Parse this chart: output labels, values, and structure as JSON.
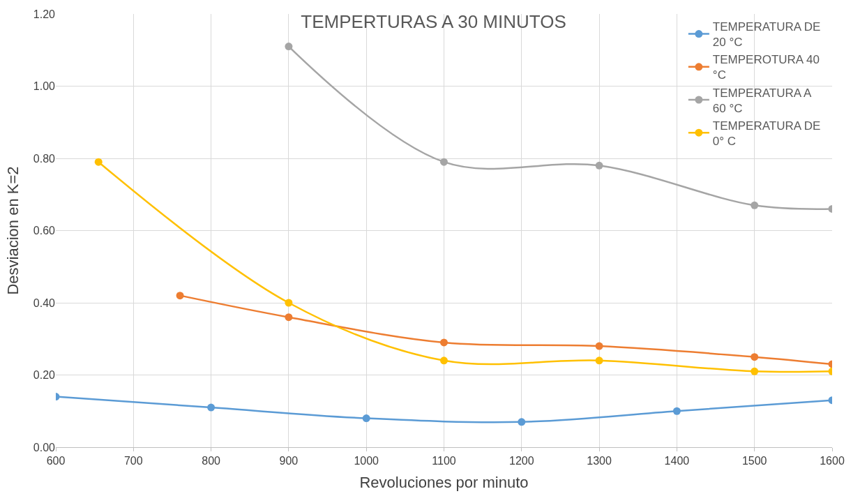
{
  "chart_data": {
    "type": "line",
    "title": "TEMPERTURAS A 30 MINUTOS",
    "xlabel": "Revoluciones por minuto",
    "ylabel": "Desviacion en K=2",
    "series": [
      {
        "name": "TEMPERATURA DE 20 °C",
        "color": "#5b9bd5",
        "x": [
          600,
          800,
          1000,
          1200,
          1400,
          1600
        ],
        "values": [
          0.14,
          0.11,
          0.08,
          0.07,
          0.1,
          0.13
        ]
      },
      {
        "name": "TEMPEROTURA 40 °C",
        "color": "#ed7d31",
        "x": [
          760,
          900,
          1100,
          1300,
          1500,
          1600
        ],
        "values": [
          0.42,
          0.36,
          0.29,
          0.28,
          0.25,
          0.23
        ]
      },
      {
        "name": "TEMPERATURA A 60 °C",
        "color": "#a5a5a5",
        "x": [
          900,
          1100,
          1300,
          1500,
          1600
        ],
        "values": [
          1.11,
          0.79,
          0.78,
          0.67,
          0.66
        ]
      },
      {
        "name": "TEMPERATURA DE 0° C",
        "color": "#ffc000",
        "x": [
          655,
          900,
          1100,
          1300,
          1500,
          1600
        ],
        "values": [
          0.79,
          0.4,
          0.24,
          0.24,
          0.21,
          0.21
        ]
      }
    ],
    "xlim": [
      600,
      1600
    ],
    "xticks": [
      600,
      700,
      800,
      900,
      1000,
      1100,
      1200,
      1300,
      1400,
      1500,
      1600
    ],
    "ylim": [
      0,
      1.2
    ],
    "yticks": [
      {
        "value": 0,
        "label": "0.00"
      },
      {
        "value": 0.2,
        "label": "0.20"
      },
      {
        "value": 0.4,
        "label": "0.40"
      },
      {
        "value": 0.6,
        "label": "0.60"
      },
      {
        "value": 0.8,
        "label": "0.80"
      },
      {
        "value": 1.0,
        "label": "1.00"
      },
      {
        "value": 1.2,
        "label": "1.20"
      }
    ],
    "grid": true,
    "legend": "top right",
    "marker": "circle",
    "line_style": "solid"
  }
}
